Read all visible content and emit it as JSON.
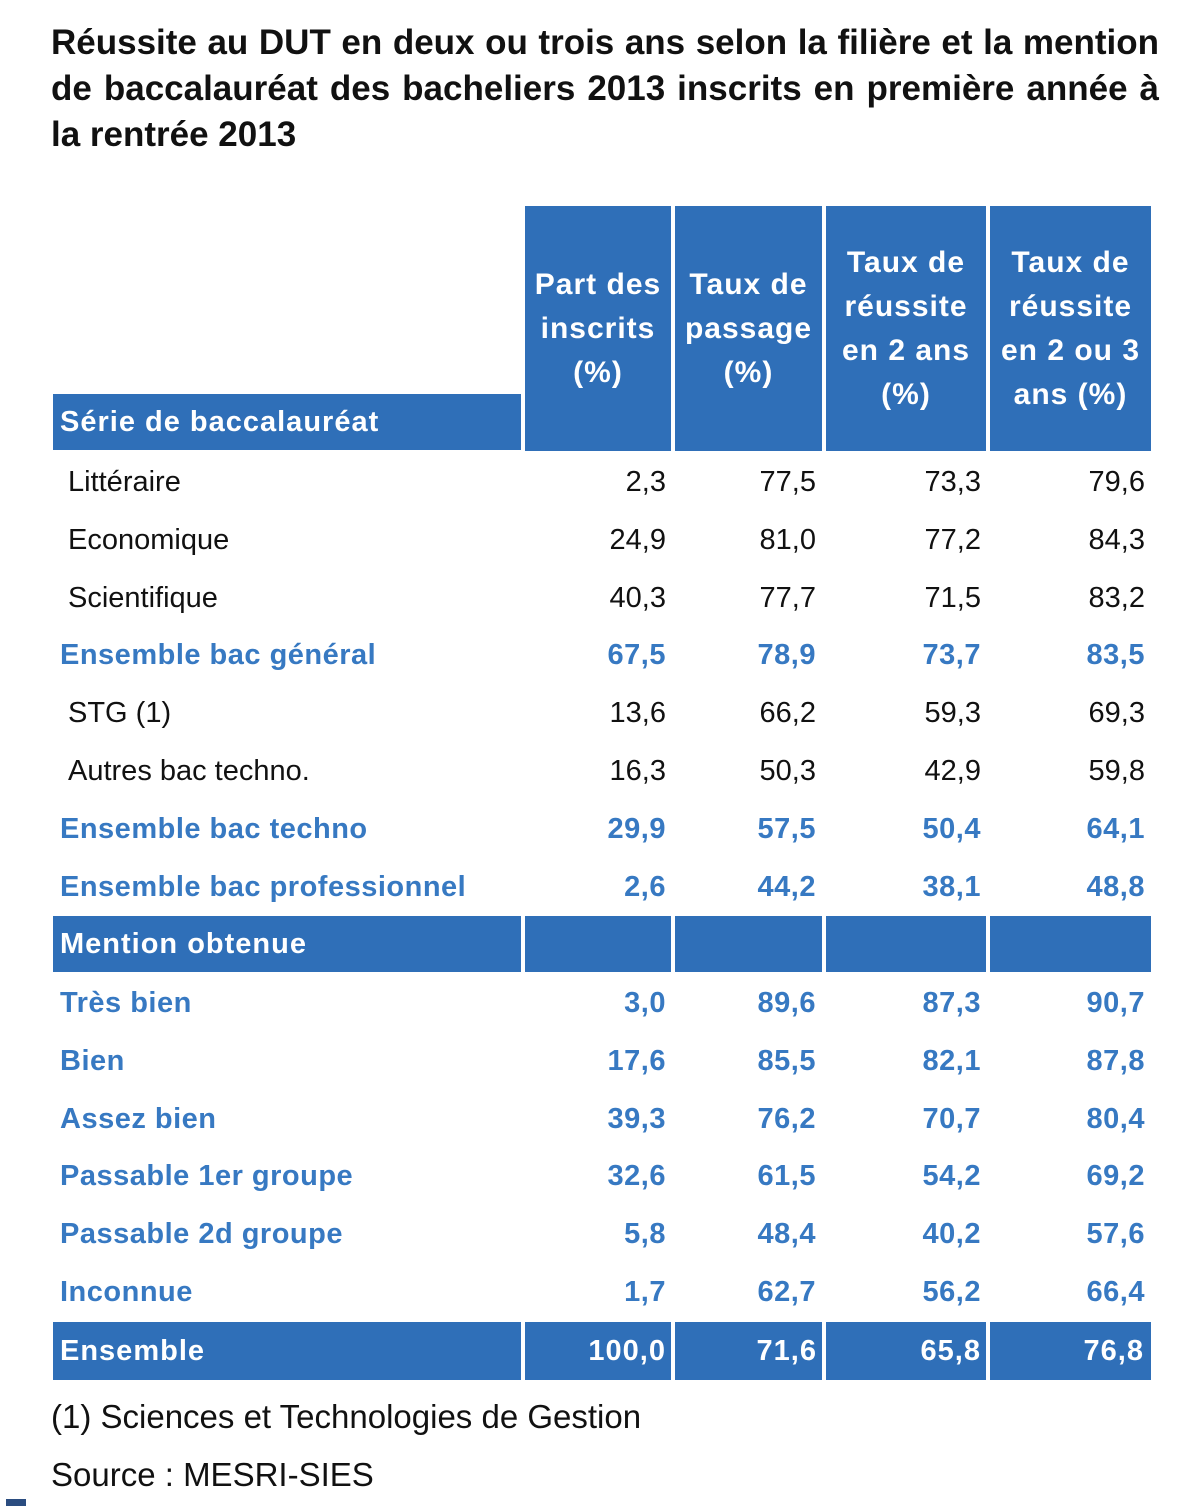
{
  "title": "Réussite au DUT en deux ou trois ans selon la filière et la mention de baccalauréat des bacheliers 2013 inscrits en première année à la rentrée 2013",
  "columns": [
    "Part des inscrits (%)",
    "Taux de passage (%)",
    "Taux de réussite en 2 ans (%)",
    "Taux de réussite en 2 ou 3 ans (%)"
  ],
  "section1_label": "Série de baccalauréat",
  "section1_rows": [
    {
      "label": "Littéraire",
      "values": [
        "2,3",
        "77,5",
        "73,3",
        "79,6"
      ],
      "total": false
    },
    {
      "label": "Economique",
      "values": [
        "24,9",
        "81,0",
        "77,2",
        "84,3"
      ],
      "total": false
    },
    {
      "label": "Scientifique",
      "values": [
        "40,3",
        "77,7",
        "71,5",
        "83,2"
      ],
      "total": false
    },
    {
      "label": "Ensemble bac général",
      "values": [
        "67,5",
        "78,9",
        "73,7",
        "83,5"
      ],
      "total": true
    },
    {
      "label": "STG (1)",
      "values": [
        "13,6",
        "66,2",
        "59,3",
        "69,3"
      ],
      "total": false
    },
    {
      "label": "Autres bac techno.",
      "values": [
        "16,3",
        "50,3",
        "42,9",
        "59,8"
      ],
      "total": false
    },
    {
      "label": "Ensemble bac techno",
      "values": [
        "29,9",
        "57,5",
        "50,4",
        "64,1"
      ],
      "total": true
    },
    {
      "label": "Ensemble bac professionnel",
      "values": [
        "2,6",
        "44,2",
        "38,1",
        "48,8"
      ],
      "total": true
    }
  ],
  "section2_label": "Mention obtenue",
  "section2_rows": [
    {
      "label": "Très bien",
      "values": [
        "3,0",
        "89,6",
        "87,3",
        "90,7"
      ]
    },
    {
      "label": "Bien",
      "values": [
        "17,6",
        "85,5",
        "82,1",
        "87,8"
      ]
    },
    {
      "label": "Assez bien",
      "values": [
        "39,3",
        "76,2",
        "70,7",
        "80,4"
      ]
    },
    {
      "label": "Passable 1er groupe",
      "values": [
        "32,6",
        "61,5",
        "54,2",
        "69,2"
      ]
    },
    {
      "label": "Passable 2d groupe",
      "values": [
        "5,8",
        "48,4",
        "40,2",
        "57,6"
      ]
    },
    {
      "label": "Inconnue",
      "values": [
        "1,7",
        "62,7",
        "56,2",
        "66,4"
      ]
    }
  ],
  "total_row": {
    "label": "Ensemble",
    "values": [
      "100,0",
      "71,6",
      "65,8",
      "76,8"
    ]
  },
  "footnote": "(1) Sciences et Technologies de Gestion",
  "source": "Source : MESRI-SIES",
  "colors": {
    "header_bg": "#2f6fb8",
    "highlight_text": "#3779c2"
  }
}
